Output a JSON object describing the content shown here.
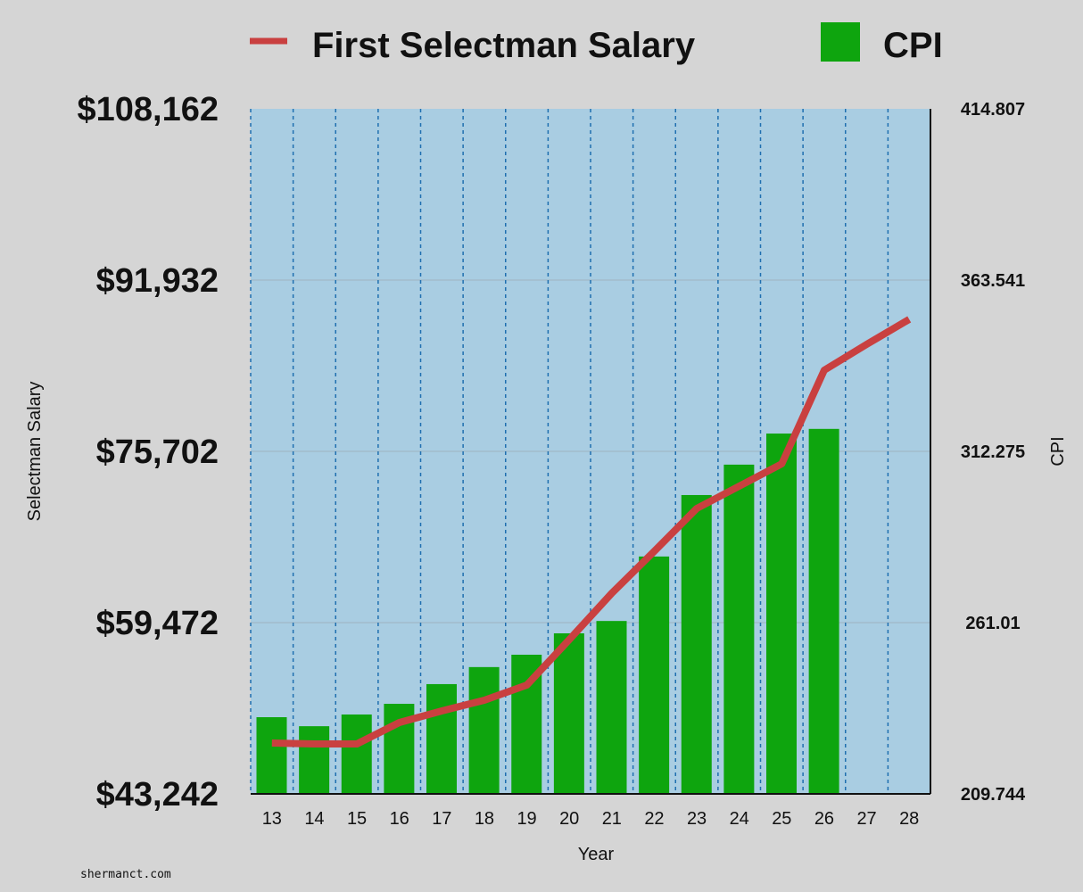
{
  "chart_data": {
    "type": "bar+line",
    "xlabel": "Year",
    "ylabel_left": "Selectman Salary",
    "ylabel_right": "CPI",
    "categories": [
      "13",
      "14",
      "15",
      "16",
      "17",
      "18",
      "19",
      "20",
      "21",
      "22",
      "23",
      "24",
      "25",
      "26",
      "27",
      "28"
    ],
    "left_axis": {
      "ylim": [
        43242,
        108162
      ],
      "ticks": [
        "$43,242",
        "$59,472",
        "$75,702",
        "$91,932",
        "$108,162"
      ]
    },
    "right_axis": {
      "ylim": [
        209.744,
        414.807
      ],
      "ticks": [
        "209.744",
        "261.01",
        "312.275",
        "363.541",
        "414.807"
      ]
    },
    "grid": true,
    "legend_placement": "top",
    "series": [
      {
        "name": "First Selectman Salary",
        "type": "line",
        "axis": "left",
        "color": "#c94040",
        "values": [
          48060,
          47976,
          47976,
          50004,
          51103,
          52118,
          53555,
          57866,
          62261,
          66234,
          70292,
          72405,
          74518,
          83394,
          85845,
          88212
        ]
      },
      {
        "name": "CPI",
        "type": "bar",
        "axis": "right",
        "color": "#0ea50e",
        "values": [
          232.7,
          230.0,
          233.5,
          236.7,
          242.6,
          247.7,
          251.4,
          257.8,
          261.5,
          280.8,
          299.2,
          308.3,
          317.6,
          319.0,
          null,
          null
        ]
      }
    ]
  },
  "watermark": "shermanct.com",
  "colors": {
    "plot_bg": "#a9cde2",
    "background": "#d5d5d5"
  }
}
